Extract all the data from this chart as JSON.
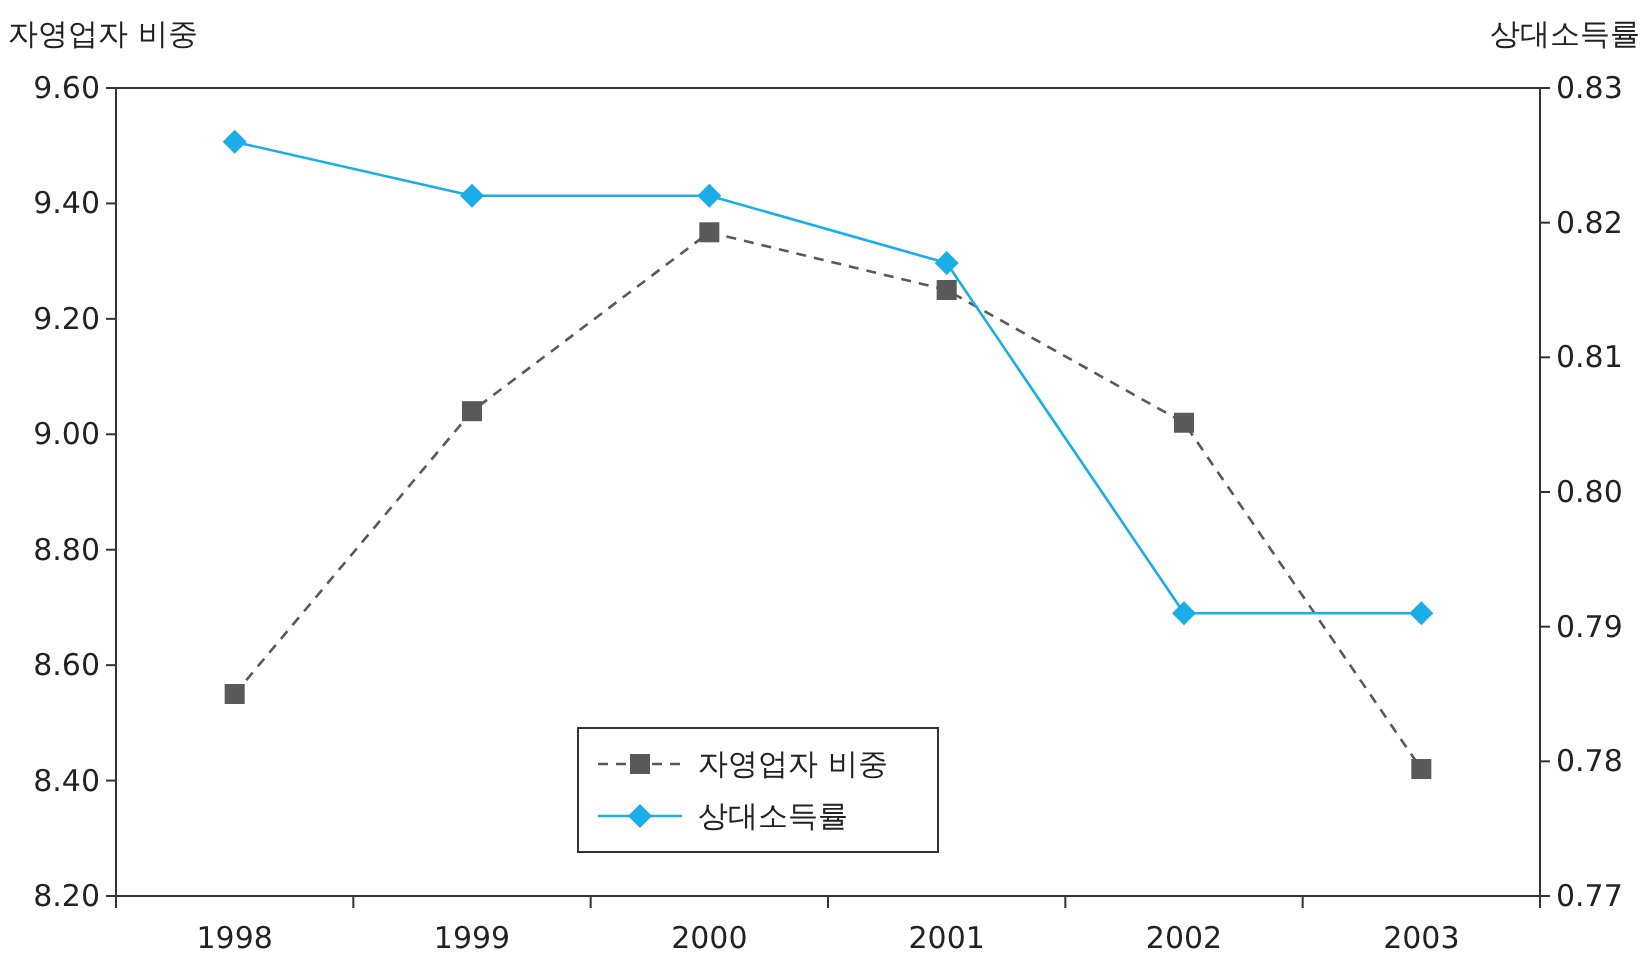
{
  "chart_data": {
    "type": "line",
    "ylabel": "자영업자 비중",
    "y2label": "상대소득률",
    "categories": [
      "1998",
      "1999",
      "2000",
      "2001",
      "2002",
      "2003"
    ],
    "series": [
      {
        "name": "자영업자 비중",
        "color": "#595959",
        "marker": "square",
        "line_style": "dashed",
        "values": [
          8.55,
          9.04,
          9.35,
          9.25,
          9.02,
          8.42
        ]
      },
      {
        "name": "상대소득률",
        "color": "#1aaee8",
        "marker": "diamond",
        "line_style": "solid",
        "axis": "y2",
        "values": [
          0.826,
          0.822,
          0.822,
          0.817,
          0.791,
          0.791
        ]
      }
    ],
    "ylim": [
      8.2,
      9.6
    ],
    "yticks": [
      {
        "value": 8.2,
        "label": "8.20"
      },
      {
        "value": 8.4,
        "label": "8.40"
      },
      {
        "value": 8.6,
        "label": "8.60"
      },
      {
        "value": 8.8,
        "label": "8.80"
      },
      {
        "value": 9.0,
        "label": "9.00"
      },
      {
        "value": 9.2,
        "label": "9.20"
      },
      {
        "value": 9.4,
        "label": "9.40"
      },
      {
        "value": 9.6,
        "label": "9.60"
      }
    ],
    "y2lim": [
      0.77,
      0.83
    ],
    "y2ticks": [
      0.77,
      0.78,
      0.79,
      {
        "value": 0.8,
        "label": "0.80"
      },
      0.81,
      0.82,
      0.83
    ],
    "legend": "bottom",
    "grid": false
  }
}
